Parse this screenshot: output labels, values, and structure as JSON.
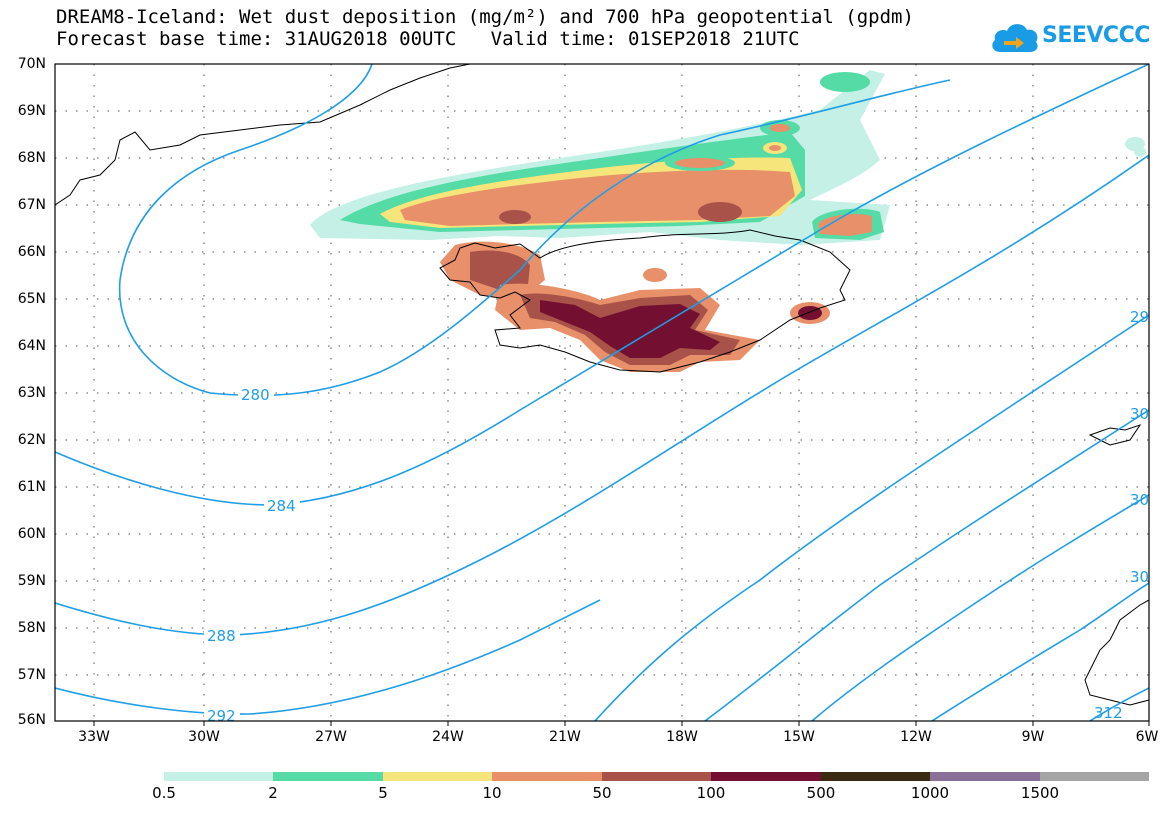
{
  "title": {
    "line1": "DREAM8-Iceland: Wet dust deposition (mg/m²) and 700 hPa geopotential (gpdm)",
    "line2": "Forecast base time: 31AUG2018 00UTC   Valid time: 01SEP2018 21UTC"
  },
  "logo": {
    "text": "SEEVCCC",
    "icon": "cloud-arrow-icon"
  },
  "map": {
    "lat_labels": [
      "70N",
      "69N",
      "68N",
      "67N",
      "66N",
      "65N",
      "64N",
      "63N",
      "62N",
      "61N",
      "60N",
      "59N",
      "58N",
      "57N",
      "56N"
    ],
    "lon_labels": [
      "33W",
      "30W",
      "27W",
      "24W",
      "21W",
      "18W",
      "15W",
      "12W",
      "9W",
      "6W"
    ],
    "contour_labels": [
      "280",
      "284",
      "288",
      "292",
      "29",
      "30",
      "30",
      "30",
      "312"
    ],
    "geopotential_line_color": "#1f9ee6",
    "grid": "dotted"
  },
  "colorbar": {
    "colors": [
      "#c4f0e6",
      "#55dba6",
      "#f5e57a",
      "#e8906a",
      "#a8524a",
      "#730f30",
      "#3a2a12",
      "#8a7099",
      "#a5a5a5"
    ],
    "labels": [
      "0.5",
      "2",
      "5",
      "10",
      "50",
      "100",
      "500",
      "1000",
      "1500"
    ]
  }
}
